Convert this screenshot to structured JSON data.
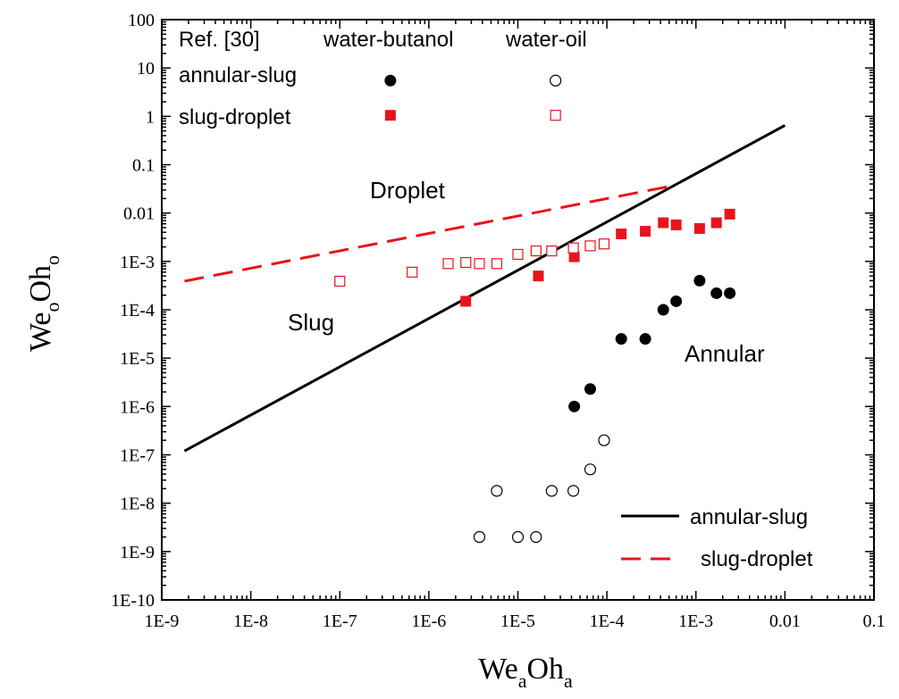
{
  "chart_data": {
    "type": "scatter",
    "x_scale": "log",
    "y_scale": "log",
    "xlim": [
      1e-09,
      0.1
    ],
    "ylim": [
      1e-10,
      100
    ],
    "x_ticks": [
      "1E-9",
      "1E-8",
      "1E-7",
      "1E-6",
      "1E-5",
      "1E-4",
      "1E-3",
      "0.01",
      "0.1"
    ],
    "y_ticks": [
      "1E-10",
      "1E-9",
      "1E-8",
      "1E-7",
      "1E-6",
      "1E-5",
      "1E-4",
      "1E-3",
      "0.01",
      "0.1",
      "1",
      "10",
      "100"
    ],
    "xlabel": {
      "main": "We",
      "sub1": "a",
      "mid": "Oh",
      "sub2": "a"
    },
    "ylabel": {
      "main": "We",
      "sub1": "o",
      "mid": "Oh",
      "sub2": "o"
    },
    "grid": false,
    "region_labels": [
      "Droplet",
      "Slug",
      "Annular"
    ],
    "marker_legend": {
      "header": "Ref. [30]",
      "col1": "water-butanol",
      "col2": "water-oil",
      "rows": [
        "annular-slug",
        "slug-droplet"
      ]
    },
    "line_legend": [
      "annular-slug",
      "slug-droplet"
    ],
    "colors": {
      "black": "#000000",
      "red": "#e8141c"
    },
    "series": [
      {
        "marker": "filled-circle",
        "color": "#000000",
        "points": [
          [
            4.3e-05,
            1e-06
          ],
          [
            6.5e-05,
            2.3e-06
          ],
          [
            0.000145,
            2.5e-05
          ],
          [
            0.00027,
            2.5e-05
          ],
          [
            0.00043,
            0.0001
          ],
          [
            0.0006,
            0.00015
          ],
          [
            0.0011,
            0.0004
          ],
          [
            0.0017,
            0.00022
          ],
          [
            0.0024,
            0.00022
          ]
        ]
      },
      {
        "marker": "open-circle",
        "color": "#000000",
        "points": [
          [
            3.7e-06,
            2e-09
          ],
          [
            1e-05,
            2e-09
          ],
          [
            1.6e-05,
            2e-09
          ],
          [
            5.8e-06,
            1.8e-08
          ],
          [
            2.4e-05,
            1.8e-08
          ],
          [
            4.2e-05,
            1.8e-08
          ],
          [
            6.5e-05,
            5e-08
          ],
          [
            9.3e-05,
            2e-07
          ]
        ]
      },
      {
        "marker": "filled-square",
        "color": "#e8141c",
        "points": [
          [
            2.6e-06,
            0.00015
          ],
          [
            1.7e-05,
            0.0005
          ],
          [
            4.3e-05,
            0.00125
          ],
          [
            0.000145,
            0.0037
          ],
          [
            0.00027,
            0.0042
          ],
          [
            0.00043,
            0.0063
          ],
          [
            0.0006,
            0.0057
          ],
          [
            0.0011,
            0.0048
          ],
          [
            0.0017,
            0.0063
          ],
          [
            0.0024,
            0.0095
          ]
        ]
      },
      {
        "marker": "open-square",
        "color": "#e8141c",
        "points": [
          [
            1e-07,
            0.00039
          ],
          [
            6.5e-07,
            0.0006
          ],
          [
            1.65e-06,
            0.0009
          ],
          [
            2.6e-06,
            0.00095
          ],
          [
            3.7e-06,
            0.0009
          ],
          [
            5.8e-06,
            0.0009
          ],
          [
            1e-05,
            0.0014
          ],
          [
            1.6e-05,
            0.00165
          ],
          [
            2.4e-05,
            0.00165
          ],
          [
            4.2e-05,
            0.0019
          ],
          [
            6.5e-05,
            0.0021
          ],
          [
            9.3e-05,
            0.0023
          ]
        ]
      }
    ],
    "lines": [
      {
        "style": "solid",
        "color": "#000000",
        "points": [
          [
            1.8e-09,
            1.2e-07
          ],
          [
            0.01,
            0.65
          ]
        ]
      },
      {
        "style": "dashed",
        "color": "#e8141c",
        "points": [
          [
            1.8e-09,
            0.00039
          ],
          [
            0.00048,
            0.035
          ]
        ]
      }
    ],
    "legend_markers": [
      {
        "marker": "filled-circle",
        "color": "#000000",
        "at": [
          3.7e-07,
          5.5
        ]
      },
      {
        "marker": "open-circle",
        "color": "#000000",
        "at": [
          2.65e-05,
          5.5
        ]
      },
      {
        "marker": "filled-square",
        "color": "#e8141c",
        "at": [
          3.7e-07,
          1.05
        ]
      },
      {
        "marker": "open-square",
        "color": "#e8141c",
        "at": [
          2.65e-05,
          1.05
        ]
      }
    ]
  }
}
